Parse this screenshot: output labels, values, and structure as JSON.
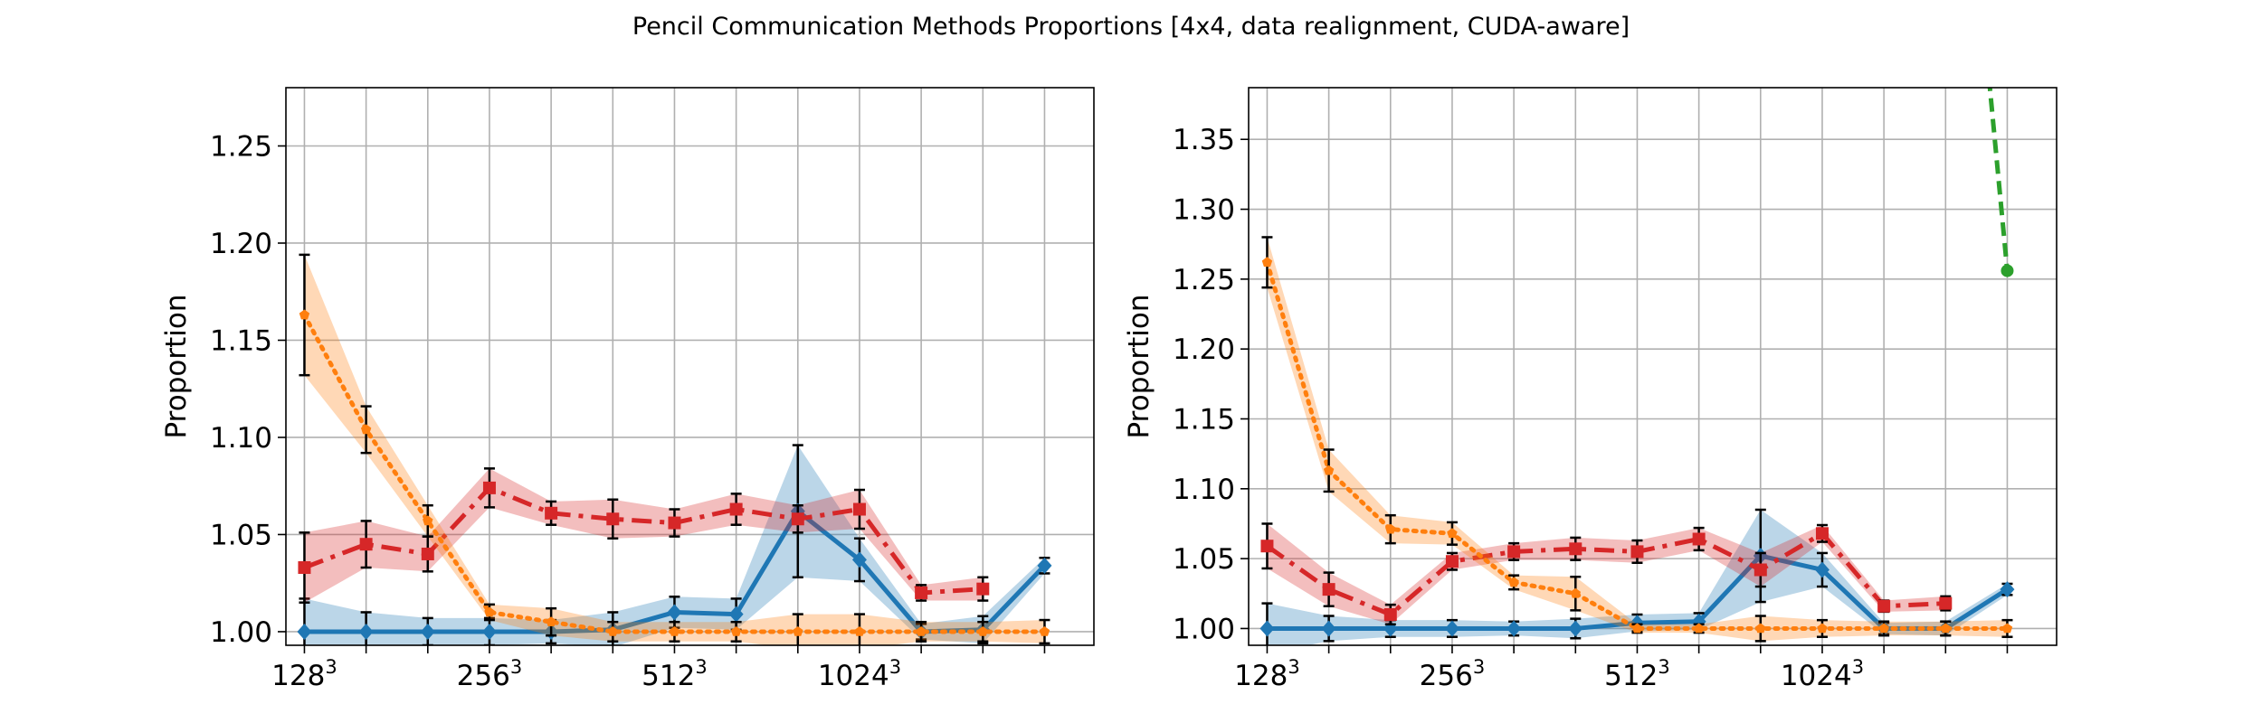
{
  "figure": {
    "title": "Pencil Communication Methods Proportions [4x4, data realignment, CUDA-aware]"
  },
  "chart_data": [
    {
      "type": "line",
      "title": "",
      "xlabel": "",
      "ylabel": "Proportion",
      "ylim": [
        0.993,
        1.28
      ],
      "yticks": [
        1.0,
        1.05,
        1.1,
        1.15,
        1.2,
        1.25
      ],
      "x": [
        0,
        1,
        2,
        3,
        4,
        5,
        6,
        7,
        8,
        9,
        10,
        11,
        12
      ],
      "xlim": [
        -0.3,
        12.8
      ],
      "xticklabels": [
        {
          "x": 0,
          "base": "128",
          "exp": "3"
        },
        {
          "x": 3,
          "base": "256",
          "exp": "3"
        },
        {
          "x": 6,
          "base": "512",
          "exp": "3"
        },
        {
          "x": 9,
          "base": "1024",
          "exp": "3"
        }
      ],
      "grid": true,
      "series": [
        {
          "color": "#1f77b4",
          "linestyle": "solid",
          "marker": "diamond",
          "values": [
            1.0,
            1.0,
            1.0,
            1.0,
            1.0,
            1.001,
            1.01,
            1.009,
            1.062,
            1.037,
            1.0,
            1.001,
            1.034
          ],
          "err": [
            0.017,
            0.01,
            0.007,
            0.007,
            0.006,
            0.009,
            0.008,
            0.008,
            0.034,
            0.011,
            0.004,
            0.007,
            0.004
          ],
          "band": [
            0.017,
            0.01,
            0.007,
            0.007,
            0.006,
            0.009,
            0.008,
            0.008,
            0.034,
            0.011,
            0.004,
            0.007,
            0.004
          ]
        },
        {
          "color": "#d62728",
          "linestyle": "dashdot",
          "marker": "square",
          "values": [
            1.033,
            1.045,
            1.04,
            1.074,
            1.061,
            1.058,
            1.056,
            1.063,
            1.058,
            1.063,
            1.02,
            1.022,
            null
          ],
          "err": [
            0.018,
            0.012,
            0.009,
            0.01,
            0.006,
            0.01,
            0.007,
            0.008,
            0.007,
            0.01,
            0.004,
            0.006,
            null
          ],
          "band": [
            0.018,
            0.012,
            0.009,
            0.01,
            0.006,
            0.01,
            0.007,
            0.008,
            0.007,
            0.01,
            0.004,
            0.006,
            null
          ]
        },
        {
          "color": "#ff7f0e",
          "linestyle": "dotted",
          "marker": "pentagon",
          "values": [
            1.163,
            1.104,
            1.057,
            1.01,
            1.005,
            1.0,
            1.0,
            1.0,
            1.0,
            1.0,
            1.0,
            1.0,
            1.0
          ],
          "err": [
            0.031,
            0.012,
            0.008,
            0.004,
            0.007,
            0.005,
            0.005,
            0.005,
            0.009,
            0.009,
            0.005,
            0.005,
            0.006
          ],
          "band": [
            0.031,
            0.012,
            0.008,
            0.004,
            0.007,
            0.005,
            0.005,
            0.005,
            0.009,
            0.009,
            0.005,
            0.005,
            0.006
          ]
        }
      ]
    },
    {
      "type": "line",
      "title": "",
      "xlabel": "",
      "ylabel": "Proportion",
      "ylim": [
        0.988,
        1.387
      ],
      "yticks": [
        1.0,
        1.05,
        1.1,
        1.15,
        1.2,
        1.25,
        1.3,
        1.35
      ],
      "x": [
        0,
        1,
        2,
        3,
        4,
        5,
        6,
        7,
        8,
        9,
        10,
        11,
        12
      ],
      "xlim": [
        -0.3,
        12.8
      ],
      "xticklabels": [
        {
          "x": 0,
          "base": "128",
          "exp": "3"
        },
        {
          "x": 3,
          "base": "256",
          "exp": "3"
        },
        {
          "x": 6,
          "base": "512",
          "exp": "3"
        },
        {
          "x": 9,
          "base": "1024",
          "exp": "3"
        }
      ],
      "grid": true,
      "series": [
        {
          "color": "#1f77b4",
          "linestyle": "solid",
          "marker": "diamond",
          "values": [
            1.0,
            1.0,
            1.0,
            1.0,
            1.0,
            1.0,
            1.004,
            1.005,
            1.052,
            1.042,
            1.0,
            1.0,
            1.028
          ],
          "err": [
            0.018,
            0.009,
            0.006,
            0.006,
            0.005,
            0.007,
            0.006,
            0.006,
            0.033,
            0.012,
            0.004,
            0.005,
            0.004
          ],
          "band": [
            0.018,
            0.009,
            0.006,
            0.006,
            0.005,
            0.007,
            0.006,
            0.006,
            0.033,
            0.012,
            0.004,
            0.005,
            0.004
          ]
        },
        {
          "color": "#d62728",
          "linestyle": "dashdot",
          "marker": "square",
          "values": [
            1.059,
            1.028,
            1.01,
            1.048,
            1.055,
            1.057,
            1.055,
            1.064,
            1.042,
            1.068,
            1.016,
            1.018,
            null
          ],
          "err": [
            0.016,
            0.012,
            0.007,
            0.006,
            0.006,
            0.008,
            0.008,
            0.008,
            0.012,
            0.006,
            0.004,
            0.005,
            null
          ],
          "band": [
            0.016,
            0.012,
            0.007,
            0.006,
            0.006,
            0.008,
            0.008,
            0.008,
            0.012,
            0.006,
            0.004,
            0.005,
            null
          ]
        },
        {
          "color": "#ff7f0e",
          "linestyle": "dotted",
          "marker": "pentagon",
          "values": [
            1.262,
            1.113,
            1.071,
            1.068,
            1.033,
            1.025,
            1.0,
            1.0,
            1.0,
            1.0,
            1.0,
            1.0,
            1.0
          ],
          "err": [
            0.018,
            0.015,
            0.01,
            0.008,
            0.005,
            0.012,
            0.003,
            0.003,
            0.009,
            0.006,
            0.005,
            0.005,
            0.006
          ],
          "band": [
            0.018,
            0.015,
            0.01,
            0.008,
            0.005,
            0.012,
            0.003,
            0.003,
            0.009,
            0.006,
            0.005,
            0.005,
            0.006
          ]
        },
        {
          "color": "#2ca02c",
          "linestyle": "dashed",
          "marker": "circle",
          "values": [
            null,
            null,
            null,
            null,
            null,
            null,
            null,
            null,
            null,
            null,
            null,
            1.72,
            1.256
          ],
          "showMarkers": [
            12
          ],
          "err": null,
          "band": null
        }
      ]
    }
  ]
}
